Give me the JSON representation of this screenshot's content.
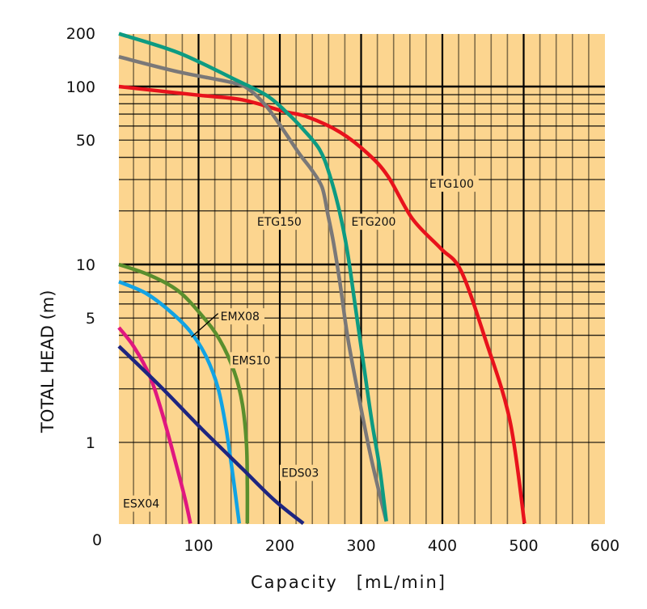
{
  "chart_data": {
    "type": "line",
    "title": "",
    "xlabel": "Capacity　[mL/min]",
    "ylabel": "TOTAL HEAD (m)",
    "xscale": "linear",
    "yscale": "log",
    "xlim": [
      0,
      600
    ],
    "ylim": [
      0.35,
      200
    ],
    "grid": true,
    "legend": "inline-labels",
    "plot_background": "#fcd58f",
    "x_ticks": [
      {
        "value": 100,
        "label": "100"
      },
      {
        "value": 200,
        "label": "200"
      },
      {
        "value": 300,
        "label": "300"
      },
      {
        "value": 400,
        "label": "400"
      },
      {
        "value": 500,
        "label": "500"
      },
      {
        "value": 600,
        "label": "600"
      }
    ],
    "corner_label": "0",
    "y_ticks": [
      {
        "value": 200,
        "label": "200"
      },
      {
        "value": 100,
        "label": "100"
      },
      {
        "value": 50,
        "label": "50"
      },
      {
        "value": 10,
        "label": "10"
      },
      {
        "value": 5,
        "label": "5"
      },
      {
        "value": 1,
        "label": "1"
      },
      {
        "value": 0.35,
        "label": "0"
      }
    ],
    "series": [
      {
        "name": "ETG100",
        "color": "#e8121c",
        "x": [
          2,
          100,
          154,
          204,
          234,
          274,
          308,
          333,
          363,
          398,
          423,
          453,
          483,
          501
        ],
        "y": [
          100,
          89.4,
          84.2,
          72.7,
          67.5,
          55.4,
          42.1,
          31.3,
          18.1,
          12.3,
          9.2,
          3.78,
          1.33,
          0.35
        ],
        "label_at": {
          "x": 384,
          "y": 27
        }
      },
      {
        "name": "ETG150",
        "color": "#7a7878",
        "x": [
          2,
          75,
          144,
          164,
          184,
          204,
          224,
          239,
          252,
          259,
          266,
          274,
          284,
          299,
          313,
          331
        ],
        "y": [
          147,
          121,
          104.5,
          94.8,
          76.9,
          57.3,
          41.9,
          34.1,
          27.1,
          19.2,
          13.3,
          7.86,
          3.78,
          1.63,
          0.79,
          0.36
        ],
        "label_at": {
          "x": 172,
          "y": 16.5
        }
      },
      {
        "name": "ETG200",
        "color": "#0d9b82",
        "x": [
          2,
          75,
          144,
          184,
          209,
          229,
          249,
          261,
          273,
          283,
          293,
          303,
          313,
          323,
          331
        ],
        "y": [
          198,
          155,
          110,
          89,
          71.2,
          57.3,
          44.2,
          32.2,
          20.2,
          11.9,
          5.74,
          2.76,
          1.33,
          0.71,
          0.36
        ],
        "label_at": {
          "x": 288,
          "y": 16.5
        }
      },
      {
        "name": "EMS10",
        "color": "#5a8f2e",
        "x": [
          2,
          40,
          75,
          104,
          126,
          144,
          154,
          159,
          160,
          160
        ],
        "y": [
          10,
          8.7,
          7.1,
          5.17,
          3.78,
          2.49,
          1.63,
          0.97,
          0.57,
          0.35
        ],
        "label_at": {
          "x": 141,
          "y": 2.75
        }
      },
      {
        "name": "EMX08",
        "color": "#12a3e4",
        "x": [
          2,
          35,
          65,
          90,
          109,
          124,
          134,
          144,
          150
        ],
        "y": [
          8.0,
          6.9,
          5.45,
          4.19,
          3.06,
          2.02,
          1.19,
          0.57,
          0.35
        ],
        "label_at": {
          "x": 127,
          "y": 4.85
        },
        "leader": {
          "from": {
            "x": 91,
            "y": 3.9
          },
          "to": {
            "x": 124,
            "y": 5.3
          }
        }
      },
      {
        "name": "ESX04",
        "color": "#e0177f",
        "x": [
          2,
          20,
          40,
          55,
          70,
          83,
          90
        ],
        "y": [
          4.42,
          3.47,
          2.36,
          1.47,
          0.83,
          0.49,
          0.35
        ],
        "label_at": {
          "x": 7,
          "y": 0.43
        }
      },
      {
        "name": "EDS03",
        "color": "#1e2580",
        "x": [
          2,
          55,
          104,
          154,
          194,
          229
        ],
        "y": [
          3.47,
          2.02,
          1.19,
          0.71,
          0.47,
          0.35
        ],
        "label_at": {
          "x": 202,
          "y": 0.64
        }
      }
    ]
  }
}
